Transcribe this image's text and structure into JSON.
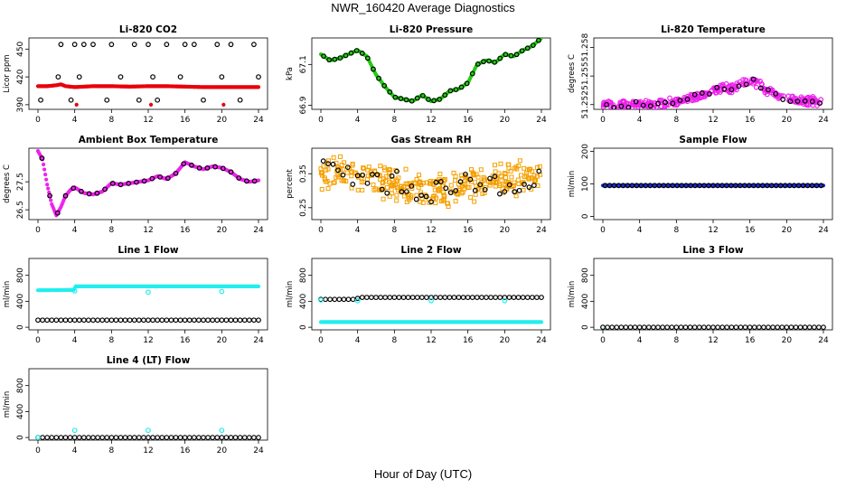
{
  "title": "NWR_160420  Average Diagnostics",
  "xlabel": "Hour of Day (UTC)",
  "chart_data": [
    {
      "type": "scatter",
      "title": "Li-820 CO2",
      "ylabel": "Licor ppm",
      "ylim": [
        385,
        462
      ],
      "yticks": [
        "390",
        "420",
        "450"
      ],
      "ytick_values": [
        390,
        420,
        450
      ],
      "xticks": [
        0,
        4,
        8,
        12,
        16,
        20,
        24
      ],
      "xlim": [
        0,
        24
      ],
      "series": [
        {
          "color": "#e8000b",
          "symbol": "dot",
          "mode": "band",
          "x": [
            0,
            1,
            2,
            2.5,
            3,
            4,
            6,
            8,
            10,
            12,
            14,
            16,
            18,
            20,
            22,
            24
          ],
          "y": [
            410,
            410,
            411,
            412,
            410,
            409,
            410,
            410,
            409.5,
            410,
            410,
            409.5,
            409,
            409,
            409,
            409
          ]
        },
        {
          "color": "#000000",
          "symbol": "circle",
          "mode": "points",
          "x": [
            0.3,
            2.2,
            2.5,
            3.6,
            4,
            4.5,
            5,
            6,
            7.5,
            8,
            9,
            10.5,
            11,
            12,
            12.5,
            13,
            14,
            15.5,
            16,
            17,
            18,
            19.5,
            20,
            21,
            22,
            23.5,
            24
          ],
          "y": [
            395,
            420,
            455,
            395,
            455,
            420,
            455,
            455,
            395,
            455,
            420,
            455,
            395,
            455,
            420,
            395,
            455,
            420,
            455,
            455,
            395,
            455,
            420,
            455,
            395,
            455,
            420
          ]
        },
        {
          "color": "#e8000b",
          "symbol": "dot",
          "mode": "points",
          "x": [
            4.2,
            12.3,
            20.2
          ],
          "y": [
            390,
            390,
            390
          ]
        }
      ]
    },
    {
      "type": "scatter",
      "title": "Li-820 Pressure",
      "ylabel": "kPa",
      "ylim": [
        66.88,
        67.23
      ],
      "yticks": [
        "66.9",
        "67.1"
      ],
      "ytick_values": [
        66.9,
        67.1
      ],
      "xticks": [
        0,
        4,
        8,
        12,
        16,
        20,
        24
      ],
      "xlim": [
        0,
        24
      ],
      "series": [
        {
          "color": "#22cc11",
          "symbol": "dot",
          "mode": "band",
          "x": [
            0,
            1,
            2,
            3,
            4,
            5,
            6,
            7,
            8,
            9,
            10,
            11,
            12,
            13,
            14,
            15,
            16,
            17,
            18,
            19,
            20,
            21,
            22,
            23,
            24
          ],
          "y": [
            67.15,
            67.12,
            67.13,
            67.15,
            67.17,
            67.14,
            67.05,
            66.99,
            66.94,
            66.93,
            66.92,
            66.95,
            66.92,
            66.93,
            66.97,
            66.98,
            67.01,
            67.1,
            67.12,
            67.11,
            67.15,
            67.14,
            67.17,
            67.19,
            67.23
          ]
        },
        {
          "color": "#000000",
          "symbol": "circle",
          "mode": "follow",
          "n": 40
        }
      ]
    },
    {
      "type": "scatter",
      "title": "Li-820 Temperature",
      "ylabel": "degrees C",
      "ylim": [
        51.2515,
        51.259
      ],
      "yticks": [
        "51.252",
        "51.255",
        "51.258"
      ],
      "ytick_values": [
        51.252,
        51.255,
        51.258
      ],
      "xticks": [
        0,
        4,
        8,
        12,
        16,
        20,
        24
      ],
      "xlim": [
        0,
        24
      ],
      "series": [
        {
          "color": "#ee22ee",
          "symbol": "circle",
          "mode": "cloud",
          "x": [
            0,
            2,
            4,
            6,
            8,
            9,
            10,
            11,
            12,
            13,
            14,
            15,
            16,
            17,
            18,
            19,
            20,
            21,
            22,
            23,
            24
          ],
          "y": [
            51.252,
            51.252,
            51.252,
            51.2521,
            51.2523,
            51.2526,
            51.2529,
            51.253,
            51.2535,
            51.2538,
            51.2537,
            51.2541,
            51.2545,
            51.2542,
            51.2533,
            51.2529,
            51.2527,
            51.2525,
            51.2524,
            51.2524,
            51.2522
          ],
          "spread": 0.0011
        },
        {
          "color": "#000000",
          "symbol": "circle",
          "mode": "follow",
          "n": 30,
          "spread": 0.0008
        }
      ]
    },
    {
      "type": "scatter",
      "title": "Ambient Box Temperature",
      "ylabel": "degrees C",
      "ylim": [
        26.15,
        28.7
      ],
      "yticks": [
        "26.5",
        "27.5"
      ],
      "ytick_values": [
        26.5,
        27.5
      ],
      "xticks": [
        0,
        4,
        8,
        12,
        16,
        20,
        24
      ],
      "xlim": [
        0,
        24
      ],
      "series": [
        {
          "color": "#ee22ee",
          "symbol": "dot",
          "mode": "band",
          "x": [
            0,
            0.5,
            1,
            1.5,
            2,
            2.5,
            3,
            3.5,
            4,
            5,
            6,
            7,
            8,
            9,
            10,
            11,
            12,
            13,
            14,
            15,
            16,
            17,
            18,
            19,
            20,
            21,
            22,
            23,
            24
          ],
          "y": [
            28.6,
            28.3,
            27.4,
            26.7,
            26.3,
            26.6,
            27.0,
            27.2,
            27.3,
            27.1,
            27.05,
            27.15,
            27.45,
            27.4,
            27.45,
            27.5,
            27.55,
            27.7,
            27.6,
            27.8,
            28.2,
            28.05,
            27.95,
            28.05,
            28.0,
            27.85,
            27.6,
            27.5,
            27.55
          ]
        },
        {
          "color": "#000000",
          "symbol": "circle",
          "mode": "follow",
          "n": 28
        }
      ]
    },
    {
      "type": "scatter",
      "title": "Gas Stream RH",
      "ylabel": "percent",
      "ylim": [
        0.215,
        0.425
      ],
      "yticks": [
        "0.25",
        "0.35"
      ],
      "ytick_values": [
        0.25,
        0.35
      ],
      "xticks": [
        0,
        4,
        8,
        12,
        16,
        20,
        24
      ],
      "xlim": [
        0,
        24
      ],
      "series": [
        {
          "color": "#f5a000",
          "symbol": "square",
          "mode": "cloud",
          "x": [
            0,
            2,
            4,
            6,
            8,
            10,
            12,
            14,
            16,
            18,
            20,
            22,
            24
          ],
          "y": [
            0.35,
            0.35,
            0.34,
            0.33,
            0.32,
            0.31,
            0.3,
            0.3,
            0.31,
            0.32,
            0.33,
            0.34,
            0.34
          ],
          "spread": 0.11
        },
        {
          "color": "#000000",
          "symbol": "circle",
          "mode": "follow",
          "n": 45,
          "spread": 0.1
        }
      ]
    },
    {
      "type": "scatter",
      "title": "Sample Flow",
      "ylabel": "ml/min",
      "ylim": [
        -10,
        210
      ],
      "yticks": [
        "0",
        "100",
        "200"
      ],
      "ytick_values": [
        0,
        100,
        200
      ],
      "xticks": [
        0,
        4,
        8,
        12,
        16,
        20,
        24
      ],
      "xlim": [
        0,
        24
      ],
      "series": [
        {
          "color": "#1a2bd8",
          "symbol": "dot",
          "mode": "band",
          "x": [
            0,
            24
          ],
          "y": [
            95,
            95
          ]
        },
        {
          "color": "#000000",
          "symbol": "circle",
          "mode": "follow",
          "n": 49
        }
      ]
    },
    {
      "type": "scatter",
      "title": "Line 1 Flow",
      "ylabel": "ml/min",
      "ylim": [
        -40,
        1060
      ],
      "yticks": [
        "0",
        "400",
        "800"
      ],
      "ytick_values": [
        0,
        400,
        800
      ],
      "xticks": [
        0,
        4,
        8,
        12,
        16,
        20,
        24
      ],
      "xlim": [
        0,
        24
      ],
      "series": [
        {
          "color": "#22eeee",
          "symbol": "dot",
          "mode": "band",
          "x": [
            0,
            3.9,
            4.1,
            24
          ],
          "y": [
            570,
            575,
            630,
            630
          ]
        },
        {
          "color": "#22eeee",
          "symbol": "circle",
          "mode": "points",
          "x": [
            4,
            12,
            20
          ],
          "y": [
            560,
            540,
            550
          ]
        },
        {
          "color": "#000000",
          "symbol": "circle",
          "mode": "line-points",
          "x": [
            0,
            24
          ],
          "y": [
            110,
            110
          ],
          "n": 49
        }
      ]
    },
    {
      "type": "scatter",
      "title": "Line 2 Flow",
      "ylabel": "ml/min",
      "ylim": [
        -40,
        1060
      ],
      "yticks": [
        "0",
        "400",
        "800"
      ],
      "ytick_values": [
        0,
        400,
        800
      ],
      "xticks": [
        0,
        4,
        8,
        12,
        16,
        20,
        24
      ],
      "xlim": [
        0,
        24
      ],
      "series": [
        {
          "color": "#22eeee",
          "symbol": "dot",
          "mode": "band",
          "x": [
            0,
            24
          ],
          "y": [
            80,
            80
          ]
        },
        {
          "color": "#000000",
          "symbol": "circle",
          "mode": "line-points",
          "x": [
            0,
            3.9,
            4.1,
            24
          ],
          "y": [
            430,
            430,
            460,
            460
          ],
          "n": 49
        },
        {
          "color": "#22eeee",
          "symbol": "circle",
          "mode": "points",
          "x": [
            0,
            4,
            12,
            20
          ],
          "y": [
            420,
            410,
            410,
            410
          ]
        }
      ]
    },
    {
      "type": "scatter",
      "title": "Line 3 Flow",
      "ylabel": "ml/min",
      "ylim": [
        -40,
        1060
      ],
      "yticks": [
        "0",
        "400",
        "800"
      ],
      "ytick_values": [
        0,
        400,
        800
      ],
      "xticks": [
        0,
        4,
        8,
        12,
        16,
        20,
        24
      ],
      "xlim": [
        0,
        24
      ],
      "series": [
        {
          "color": "#22eeee",
          "symbol": "circle",
          "mode": "points",
          "x": [
            0
          ],
          "y": [
            0
          ]
        },
        {
          "color": "#000000",
          "symbol": "circle",
          "mode": "line-points",
          "x": [
            0,
            24
          ],
          "y": [
            0,
            0
          ],
          "n": 49
        }
      ]
    },
    {
      "type": "scatter",
      "title": "Line 4 (LT) Flow",
      "ylabel": "ml/min",
      "ylim": [
        -40,
        1060
      ],
      "yticks": [
        "0",
        "400",
        "800"
      ],
      "ytick_values": [
        0,
        400,
        800
      ],
      "xticks": [
        0,
        4,
        8,
        12,
        16,
        20,
        24
      ],
      "xlim": [
        0,
        24
      ],
      "series": [
        {
          "color": "#000000",
          "symbol": "circle",
          "mode": "line-points",
          "x": [
            0,
            24
          ],
          "y": [
            0,
            0
          ],
          "n": 49
        },
        {
          "color": "#22eeee",
          "symbol": "circle",
          "mode": "points",
          "x": [
            0,
            4,
            12,
            20
          ],
          "y": [
            0,
            110,
            110,
            110
          ]
        }
      ]
    }
  ]
}
